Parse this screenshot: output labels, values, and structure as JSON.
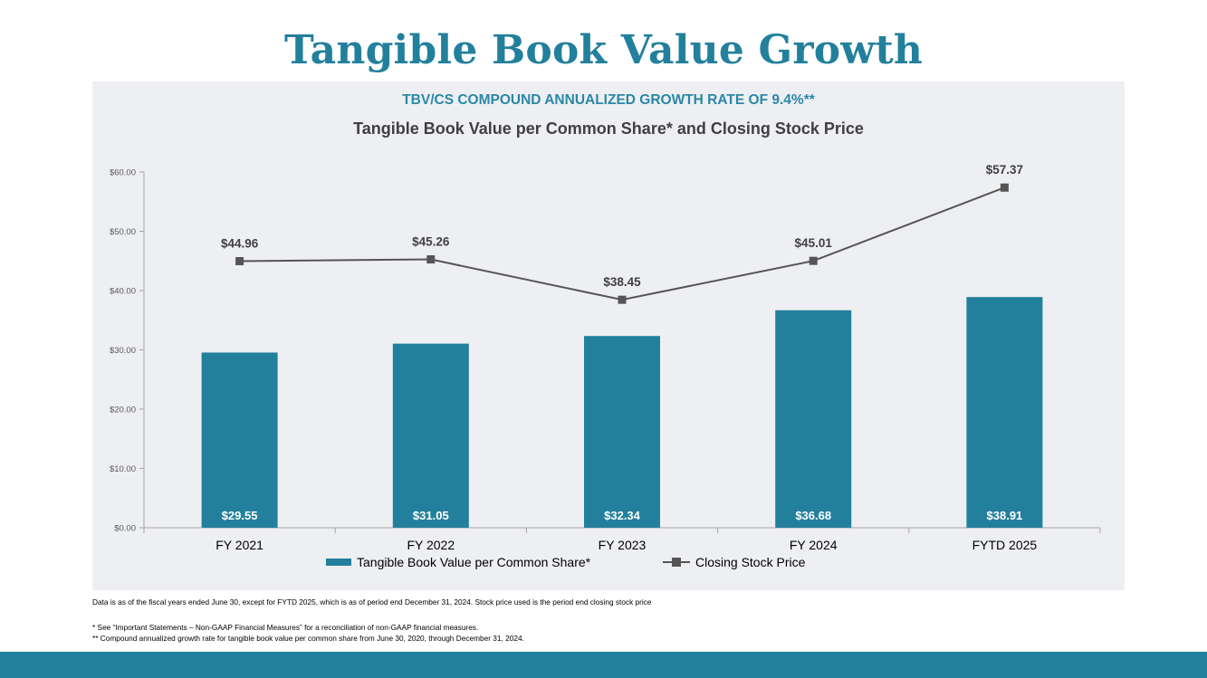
{
  "page": {
    "title": "Tangible Book Value Growth",
    "notes": {
      "data_note": "Data is as of the fiscal years ended June 30, except for FYTD 2025, which is as of period end December 31, 2024. Stock price used is the period end closing stock price",
      "footnote_1": "*  See “Important Statements – Non-GAAP Financial Measures” for a reconciliation of non-GAAP financial measures.",
      "footnote_2": "** Compound annualized growth rate for tangible book value per common share from June 30, 2020, through December 31, 2024."
    }
  },
  "colors": {
    "accent": "#23809c",
    "line": "#555555",
    "panel": "#eeeff3"
  },
  "chart_data": {
    "type": "bar",
    "subtitle": "TBV/CS COMPOUND ANNUALIZED GROWTH RATE OF 9.4%**",
    "title": "Tangible Book Value per Common Share* and Closing Stock Price",
    "categories": [
      "FY 2021",
      "FY 2022",
      "FY 2023",
      "FY 2024",
      "FYTD 2025"
    ],
    "series": [
      {
        "name": "Tangible Book Value per Common Share*",
        "type": "bar",
        "values": [
          29.55,
          31.05,
          32.34,
          36.68,
          38.91
        ],
        "labels": [
          "$29.55",
          "$31.05",
          "$32.34",
          "$36.68",
          "$38.91"
        ]
      },
      {
        "name": "Closing Stock Price",
        "type": "line",
        "marker": "square",
        "values": [
          44.96,
          45.26,
          38.45,
          45.01,
          57.37
        ],
        "labels": [
          "$44.96",
          "$45.26",
          "$38.45",
          "$45.01",
          "$57.37"
        ]
      }
    ],
    "ylim": [
      0,
      60
    ],
    "yticks": [
      0,
      10,
      20,
      30,
      40,
      50,
      60
    ],
    "ytick_labels": [
      "$0.00",
      "$10.00",
      "$20.00",
      "$30.00",
      "$40.00",
      "$50.00",
      "$60.00"
    ],
    "xlabel": "",
    "ylabel": "",
    "grid": false,
    "legend": "bottom"
  }
}
